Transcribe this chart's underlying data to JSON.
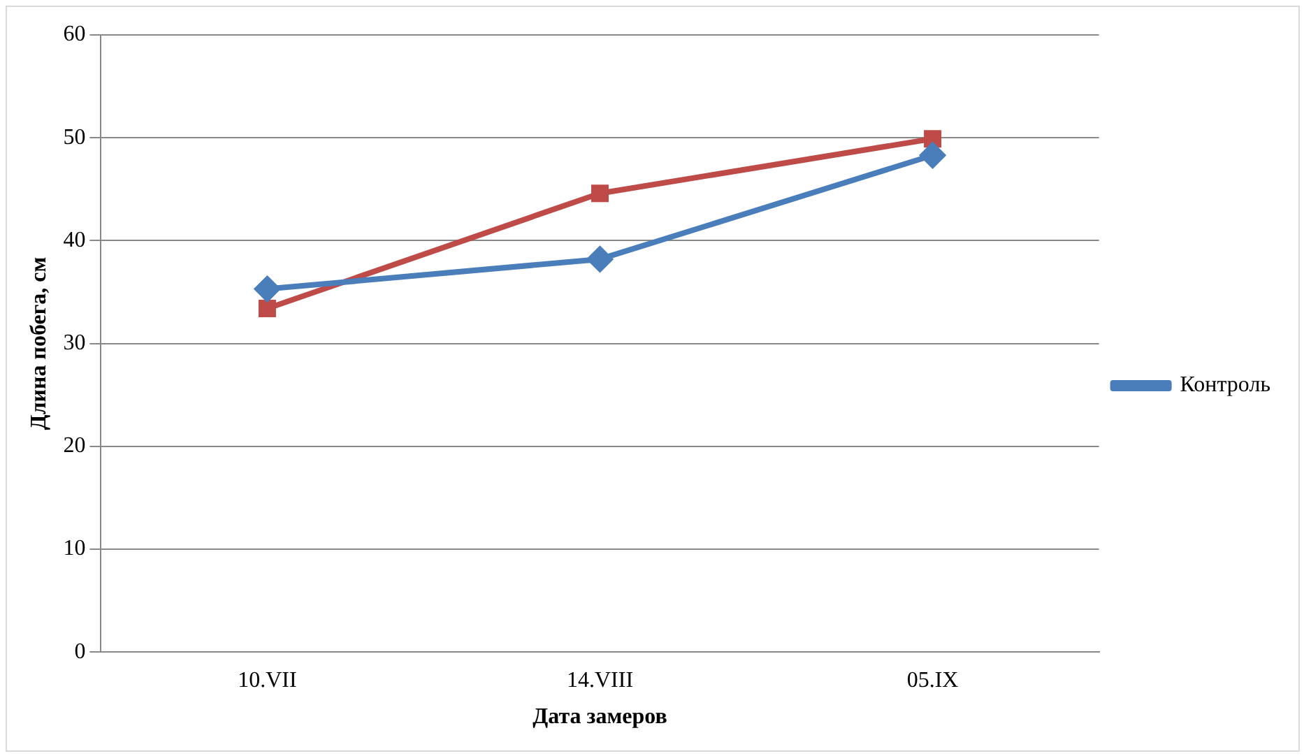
{
  "chart_data": {
    "type": "line",
    "xlabel": "Дата замеров",
    "ylabel": "Длина побега, см",
    "categories": [
      "10.VII",
      "14.VIII",
      "05.IX"
    ],
    "series": [
      {
        "name": "Контроль",
        "color": "#4a7ebb",
        "marker": "diamond",
        "values": [
          35.3,
          38.2,
          48.3
        ]
      },
      {
        "color": "#be4b48",
        "marker": "square",
        "values": [
          33.4,
          44.6,
          49.9
        ]
      }
    ],
    "ylim": [
      0,
      60
    ],
    "yticks": [
      0,
      10,
      20,
      30,
      40,
      50,
      60
    ],
    "grid": "y",
    "legend": "right"
  }
}
